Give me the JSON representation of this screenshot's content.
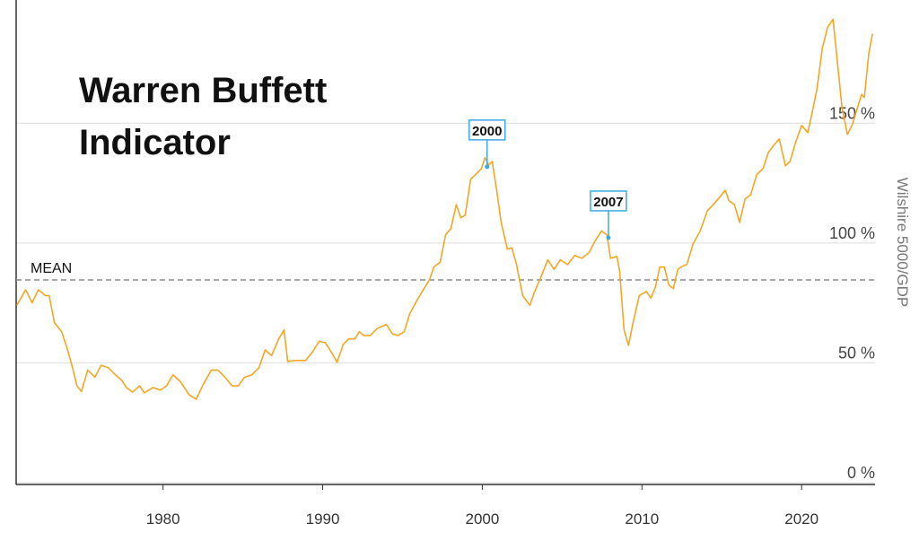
{
  "chart_data": {
    "type": "line",
    "title": "Warren Buffett Indicator",
    "y_label": "Wilshire 5000/GDP",
    "color": "#f5a623",
    "xlim": [
      1970.8,
      2024.6
    ],
    "ylim": [
      0,
      201
    ],
    "xticks": [
      1980,
      1990,
      2000,
      2010,
      2020
    ],
    "yticks": [
      {
        "value": 0,
        "label": "0 %"
      },
      {
        "value": 50,
        "label": "50 %"
      },
      {
        "value": 100,
        "label": "100 %"
      },
      {
        "value": 150,
        "label": "150 %"
      }
    ],
    "grid": true,
    "mean_line": {
      "label": "MEAN",
      "value": 84.6
    },
    "annotations": [
      {
        "label": "2000",
        "x": 2000.3,
        "y": 131.8
      },
      {
        "label": "2007",
        "x": 2007.9,
        "y": 102.2
      }
    ],
    "x": [
      1970.84,
      1971.4,
      1971.8,
      1972.19,
      1972.64,
      1972.87,
      1973.2,
      1973.65,
      1974.04,
      1974.33,
      1974.61,
      1974.89,
      1975.28,
      1975.73,
      1976.12,
      1976.57,
      1977.02,
      1977.42,
      1977.7,
      1978.09,
      1978.54,
      1978.82,
      1979.38,
      1979.83,
      1980.22,
      1980.62,
      1981.07,
      1981.63,
      1982.08,
      1982.47,
      1983.03,
      1983.43,
      1983.88,
      1984.33,
      1984.72,
      1985.11,
      1985.56,
      1986.01,
      1986.4,
      1986.8,
      1987.25,
      1987.58,
      1987.81,
      1988.37,
      1988.93,
      1989.38,
      1989.78,
      1990.17,
      1990.62,
      1990.9,
      1991.29,
      1991.63,
      1992.02,
      1992.3,
      1992.58,
      1992.98,
      1993.43,
      1993.99,
      1994.38,
      1994.72,
      1995.11,
      1995.45,
      1995.9,
      1996.35,
      1996.69,
      1996.97,
      1997.36,
      1997.7,
      1998.03,
      1998.37,
      1998.65,
      1998.93,
      1999.27,
      1999.61,
      1999.94,
      2000.17,
      2000.39,
      2000.62,
      2000.9,
      2001.18,
      2001.57,
      2001.85,
      2002.13,
      2002.53,
      2002.98,
      2003.26,
      2003.65,
      2004.1,
      2004.49,
      2004.89,
      2005.34,
      2005.79,
      2006.24,
      2006.69,
      2007.02,
      2007.47,
      2007.81,
      2008.03,
      2008.43,
      2008.6,
      2008.88,
      2009.16,
      2009.44,
      2009.83,
      2010.28,
      2010.56,
      2010.84,
      2011.12,
      2011.4,
      2011.69,
      2011.97,
      2012.25,
      2012.53,
      2012.81,
      2013.2,
      2013.65,
      2014.1,
      2014.38,
      2014.78,
      2015.22,
      2015.45,
      2015.79,
      2016.12,
      2016.46,
      2016.8,
      2017.19,
      2017.58,
      2017.92,
      2018.26,
      2018.6,
      2018.99,
      2019.27,
      2019.61,
      2020.0,
      2020.39,
      2020.67,
      2020.96,
      2021.29,
      2021.63,
      2021.97,
      2022.19,
      2022.53,
      2022.87,
      2023.2,
      2023.48,
      2023.76,
      2023.93,
      2024.21,
      2024.44
    ],
    "values": [
      74,
      80.5,
      75,
      80.5,
      78,
      78,
      66.7,
      63,
      55,
      48,
      40.4,
      38,
      47,
      44,
      49,
      48,
      45,
      42.7,
      39.7,
      37.8,
      40.4,
      37.5,
      39.7,
      38.6,
      40.4,
      45,
      42.3,
      36.7,
      34.8,
      40.4,
      47,
      47,
      44,
      40.4,
      40.4,
      44,
      45,
      48,
      55.4,
      53,
      60,
      63.7,
      50.6,
      51,
      51,
      54.7,
      59,
      58.4,
      53.6,
      50.2,
      57.7,
      60,
      60,
      63,
      61.4,
      61.4,
      64.4,
      66,
      62,
      61.4,
      63,
      70.4,
      76,
      81,
      84.6,
      90,
      92,
      103.4,
      106,
      116,
      110.5,
      111.6,
      126.6,
      128.8,
      131,
      135.6,
      132.6,
      134,
      122,
      108.6,
      97.4,
      98,
      91.4,
      78,
      74,
      79.4,
      85.4,
      93,
      89,
      93,
      91,
      94.8,
      93.6,
      96,
      100.4,
      105,
      103.4,
      93.6,
      94.4,
      88.4,
      63.7,
      57.3,
      66.7,
      78,
      79.8,
      77,
      81.6,
      90,
      90,
      82.4,
      81,
      89,
      90.3,
      91,
      99.6,
      105,
      113.5,
      115.4,
      118.4,
      122,
      117.6,
      116,
      108.6,
      118.4,
      120,
      128.5,
      131,
      137.8,
      140.8,
      143.4,
      132.2,
      134,
      141.6,
      149,
      146,
      154.7,
      164,
      181,
      190,
      193.3,
      179,
      156.6,
      145.3,
      149.8,
      156,
      162,
      160.7,
      179,
      187.3
    ]
  }
}
